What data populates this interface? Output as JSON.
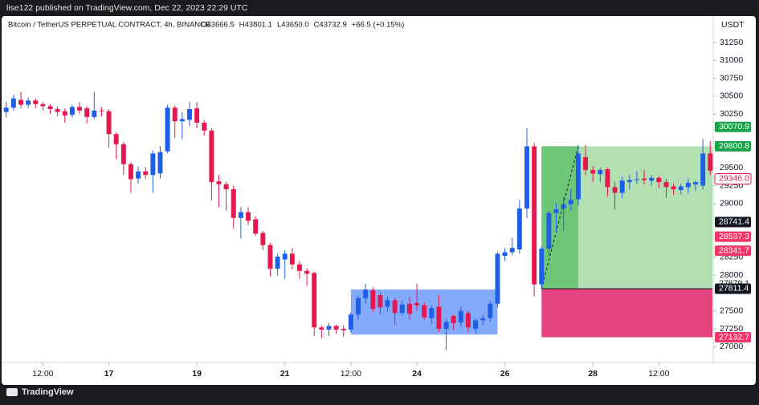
{
  "topbar": {
    "text": "lise122 published on TradingView.com, Dec 22, 2023 22:29 UTC"
  },
  "footer": {
    "brand": "TradingView"
  },
  "chart_data": {
    "type": "candlestick",
    "title": "Bitcoin / TetherUS PERPETUAL CONTRACT, 4h, BINANCE",
    "legend": [
      "O43666.5",
      "H43801.1",
      "L43650.0",
      "C43732.9",
      "+66.5 (+0.15%)"
    ],
    "currency": "USDT",
    "up_color": "#1f5fe8",
    "down_color": "#e5174f",
    "open": [
      30280,
      30340,
      30450,
      30380,
      30440,
      30390,
      30360,
      30320,
      30290,
      30240,
      30350,
      30330,
      30210,
      30300,
      30290,
      29970,
      29830,
      29550,
      29350,
      29450,
      29400,
      29420,
      29730,
      30340,
      30150,
      30170,
      30330,
      30130,
      30020,
      29310,
      29270,
      29200,
      28800,
      28880,
      28780,
      28590,
      28420,
      28090,
      28220,
      28300,
      28150,
      28060,
      28030,
      27270,
      27240,
      27290,
      27250,
      27240,
      27450,
      27680,
      27790,
      27720,
      27560,
      27650,
      27470,
      27600,
      27610,
      27580,
      27400,
      27560,
      27250,
      27430,
      27340,
      27470,
      27250,
      27370,
      27400,
      27600,
      28270,
      28320,
      28360,
      28930,
      29800,
      27870,
      28370,
      28870,
      28930,
      28990,
      29060,
      29650,
      29470,
      29410,
      29480,
      29230,
      29150,
      29300,
      29330,
      29350,
      29320,
      29360,
      29300,
      29240,
      29190,
      29230,
      29270,
      29250,
      29700
    ],
    "high": [
      30420,
      30520,
      30560,
      30480,
      30470,
      30420,
      30390,
      30360,
      30330,
      30380,
      30420,
      30360,
      30560,
      30350,
      30320,
      30000,
      29860,
      29580,
      29520,
      29510,
      29740,
      29800,
      30380,
      30370,
      30280,
      30420,
      30420,
      30160,
      30050,
      29400,
      29300,
      29250,
      28950,
      28950,
      28820,
      28620,
      28450,
      28300,
      28350,
      28380,
      28200,
      28100,
      28050,
      27300,
      27330,
      27310,
      27300,
      27480,
      27720,
      27880,
      27830,
      27760,
      27700,
      27680,
      27650,
      27700,
      27880,
      27620,
      27580,
      27720,
      27400,
      27450,
      27560,
      27500,
      27400,
      27450,
      27640,
      28320,
      28380,
      28520,
      29050,
      30050,
      29850,
      28400,
      28900,
      29000,
      29100,
      29200,
      29820,
      29820,
      29520,
      29500,
      29500,
      29300,
      29380,
      29400,
      29450,
      29470,
      29400,
      29380,
      29340,
      29280,
      29280,
      29350,
      29320,
      29900,
      29870
    ],
    "low": [
      30200,
      30300,
      30330,
      30340,
      30330,
      30300,
      30250,
      30220,
      30130,
      30200,
      30250,
      30120,
      30180,
      30220,
      29780,
      29620,
      29400,
      29150,
      29280,
      29340,
      29150,
      29350,
      29700,
      29920,
      29900,
      30080,
      30050,
      29950,
      29040,
      28950,
      28900,
      28650,
      28510,
      28700,
      28550,
      28350,
      27980,
      28000,
      27950,
      28080,
      27950,
      27850,
      27150,
      27120,
      27150,
      27180,
      27140,
      27200,
      27380,
      27600,
      27480,
      27450,
      27500,
      27300,
      27440,
      27380,
      27500,
      27380,
      27320,
      27200,
      26950,
      27230,
      27280,
      27200,
      27180,
      27300,
      27350,
      27550,
      28200,
      28280,
      28300,
      28800,
      27700,
      27820,
      28280,
      28600,
      28620,
      28900,
      28970,
      29400,
      29300,
      29300,
      29100,
      28920,
      29080,
      29200,
      29280,
      29270,
      29250,
      29220,
      29080,
      29120,
      29130,
      29150,
      29180,
      29200,
      29400
    ],
    "close": [
      30340,
      30470,
      30380,
      30440,
      30390,
      30360,
      30320,
      30280,
      30230,
      30350,
      30300,
      30210,
      30300,
      30290,
      29970,
      29830,
      29550,
      29340,
      29450,
      29400,
      29700,
      29720,
      30340,
      30150,
      30180,
      30320,
      30130,
      30020,
      29300,
      29270,
      29200,
      28800,
      28880,
      28760,
      28580,
      28420,
      28090,
      28260,
      28300,
      28150,
      28060,
      28020,
      27270,
      27240,
      27290,
      27240,
      27230,
      27450,
      27680,
      27800,
      27530,
      27550,
      27650,
      27470,
      27590,
      27460,
      27580,
      27410,
      27540,
      27250,
      27350,
      27330,
      27500,
      27270,
      27370,
      27400,
      27600,
      28300,
      28320,
      28380,
      28930,
      29800,
      27870,
      28370,
      28870,
      28920,
      28990,
      29050,
      29700,
      29470,
      29420,
      29470,
      29230,
      29150,
      29320,
      29330,
      29340,
      29330,
      29360,
      29300,
      29230,
      29200,
      29240,
      29290,
      29300,
      29700,
      29460
    ],
    "xlim": [
      -14.3,
      82.3
    ],
    "xticks": [
      {
        "value": -9,
        "label": "12:00"
      },
      {
        "value": 0,
        "label": "17"
      },
      {
        "value": 12,
        "label": "19"
      },
      {
        "value": 24,
        "label": "21"
      },
      {
        "value": 33,
        "label": "12:00"
      },
      {
        "value": 42,
        "label": "24"
      },
      {
        "value": 54,
        "label": "26"
      },
      {
        "value": 66,
        "label": "28"
      },
      {
        "value": 75,
        "label": "12:00"
      }
    ],
    "ylim": [
      26780,
      31620
    ],
    "yticks": [
      31250,
      31000,
      30750,
      30500,
      30250,
      29500,
      29250,
      29000,
      28250,
      28000,
      27500,
      27250,
      27000
    ],
    "price_markers": [
      {
        "value": 30070.9,
        "color": "#1ba34a"
      },
      {
        "value": 29800.8,
        "color": "#1ba34a"
      },
      {
        "value": {
          "value": 29346,
          "label": "29346.0"
        },
        "color": "#ffffff",
        "text_color": "#e5174f"
      },
      {
        "value": 28741.4,
        "color": "#131722"
      },
      {
        "value": 28537.3,
        "color": "#f23668"
      },
      {
        "value": 28341.7,
        "color": "#f23668"
      },
      {
        "value": 27879.1,
        "color": "#ffffff",
        "text_color": "#131722"
      },
      {
        "value": 27811.4,
        "color": "#131722"
      },
      {
        "value": 27132.7,
        "color": "#f23668"
      }
    ],
    "range_box": {
      "x": [
        33,
        53
      ],
      "y": [
        27170,
        27800
      ],
      "color": "#5b8ff9"
    },
    "position": {
      "start": 59,
      "filled_until": 64,
      "entry": 27811.4,
      "target": 29800.8,
      "stop": 27132.7
    }
  }
}
